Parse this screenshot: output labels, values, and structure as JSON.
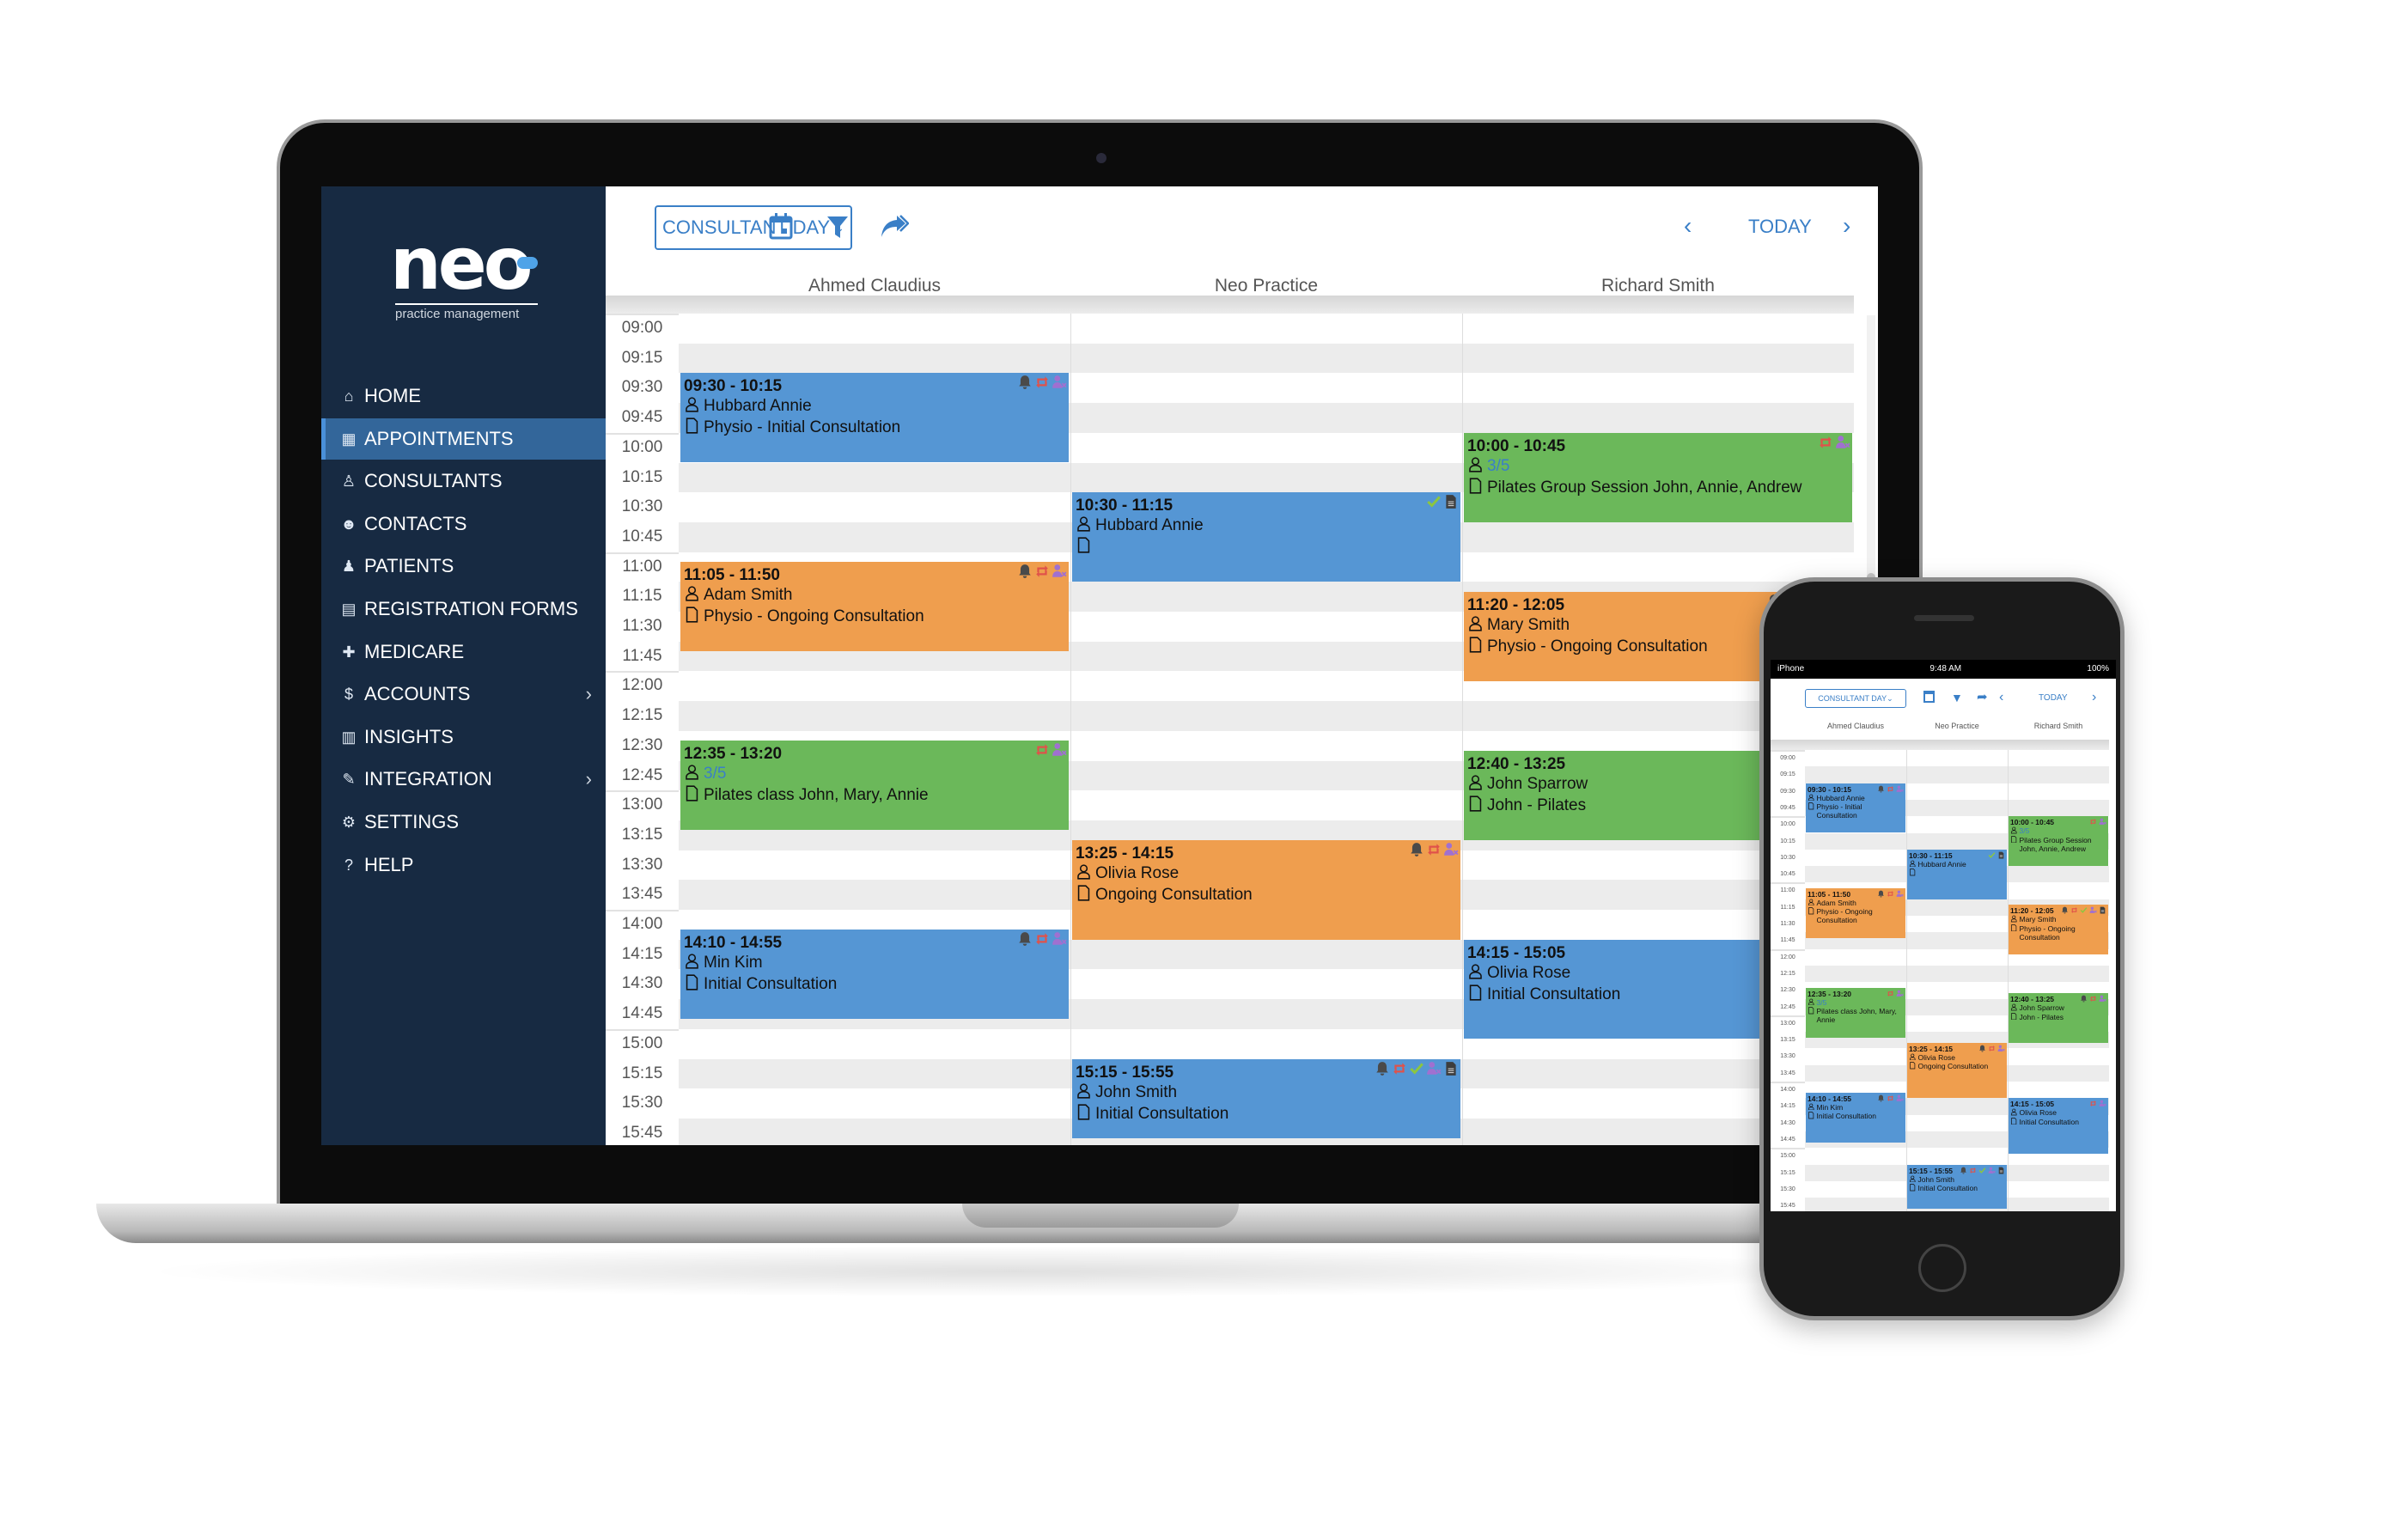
{
  "colors": {
    "blue": "#5596d4",
    "orange": "#ef9e4e",
    "green": "#6bb85a",
    "sidebar": "#172a42",
    "sidebar_active": "#33669a",
    "accent": "#3a7fc7"
  },
  "logo": {
    "text": "neo",
    "subtitle": "practice management"
  },
  "sidebar": {
    "items": [
      {
        "label": "HOME",
        "icon": "home-icon",
        "glyph": "⌂"
      },
      {
        "label": "APPOINTMENTS",
        "icon": "calendar-icon",
        "glyph": "▦",
        "active": true
      },
      {
        "label": "CONSULTANTS",
        "icon": "doctor-icon",
        "glyph": "♙"
      },
      {
        "label": "CONTACTS",
        "icon": "users-icon",
        "glyph": "☻"
      },
      {
        "label": "PATIENTS",
        "icon": "user-icon",
        "glyph": "♟"
      },
      {
        "label": "REGISTRATION FORMS",
        "icon": "file-icon",
        "glyph": "▤"
      },
      {
        "label": "MEDICARE",
        "icon": "medkit-icon",
        "glyph": "✚"
      },
      {
        "label": "ACCOUNTS",
        "icon": "dollar-icon",
        "glyph": "$",
        "submenu": true
      },
      {
        "label": "INSIGHTS",
        "icon": "bar-chart-icon",
        "glyph": "▥"
      },
      {
        "label": "INTEGRATION",
        "icon": "plug-icon",
        "glyph": "✎",
        "submenu": true
      },
      {
        "label": "SETTINGS",
        "icon": "cogs-icon",
        "glyph": "⚙"
      },
      {
        "label": "HELP",
        "icon": "question-icon",
        "glyph": "?"
      }
    ]
  },
  "toolbar": {
    "view_label": "CONSULTANT DAY",
    "today_label": "TODAY"
  },
  "calendar": {
    "times": [
      "09:00",
      "09:15",
      "09:30",
      "09:45",
      "10:00",
      "10:15",
      "10:30",
      "10:45",
      "11:00",
      "11:15",
      "11:30",
      "11:45",
      "12:00",
      "12:15",
      "12:30",
      "12:45",
      "13:00",
      "13:15",
      "13:30",
      "13:45",
      "14:00",
      "14:15",
      "14:30",
      "14:45",
      "15:00",
      "15:15",
      "15:30",
      "15:45"
    ],
    "columns": [
      {
        "name": "Ahmed Claudius",
        "events": [
          {
            "time": "09:30 - 10:15",
            "start": "09:30",
            "end": "10:15",
            "color": "blue",
            "person": "Hubbard Annie",
            "desc": "Physio - Initial Consultation",
            "icons": [
              "bell",
              "repeat",
              "user-x"
            ]
          },
          {
            "time": "11:05 - 11:50",
            "start": "11:05",
            "end": "11:50",
            "color": "orange",
            "person": "Adam Smith",
            "desc": "Physio - Ongoing Consultation",
            "icons": [
              "bell",
              "repeat",
              "user-x"
            ]
          },
          {
            "time": "12:35 - 13:20",
            "start": "12:35",
            "end": "13:20",
            "color": "green",
            "count": "3/5",
            "desc": "Pilates class John, Mary, Annie",
            "icons": [
              "repeat",
              "user-x"
            ]
          },
          {
            "time": "14:10 - 14:55",
            "start": "14:10",
            "end": "14:55",
            "color": "blue",
            "person": "Min Kim",
            "desc": "Initial Consultation",
            "icons": [
              "bell",
              "repeat",
              "user-x"
            ]
          }
        ]
      },
      {
        "name": "Neo Practice",
        "events": [
          {
            "time": "10:30 - 11:15",
            "start": "10:30",
            "end": "11:15",
            "color": "blue",
            "person": "Hubbard Annie",
            "desc": "",
            "icons": [
              "check",
              "doc"
            ]
          },
          {
            "time": "13:25 - 14:15",
            "start": "13:25",
            "end": "14:15",
            "color": "orange",
            "person": "Olivia Rose",
            "desc": "Ongoing Consultation",
            "icons": [
              "bell",
              "repeat",
              "user-x"
            ]
          },
          {
            "time": "15:15 - 15:55",
            "start": "15:15",
            "end": "15:55",
            "color": "blue",
            "person": "John Smith",
            "desc": "Initial Consultation",
            "icons": [
              "bell",
              "repeat",
              "check",
              "user-x",
              "doc"
            ]
          }
        ]
      },
      {
        "name": "Richard Smith",
        "events": [
          {
            "time": "10:00 - 10:45",
            "start": "10:00",
            "end": "10:45",
            "color": "green",
            "count": "3/5",
            "desc": "Pilates Group Session John, Annie, Andrew",
            "icons": [
              "repeat",
              "user-x"
            ]
          },
          {
            "time": "11:20 - 12:05",
            "start": "11:20",
            "end": "12:05",
            "color": "orange",
            "person": "Mary Smith",
            "desc": "Physio - Ongoing Consultation",
            "icons": [
              "bell",
              "repeat",
              "check",
              "user-x",
              "doc"
            ]
          },
          {
            "time": "12:40 - 13:25",
            "start": "12:40",
            "end": "13:25",
            "color": "green",
            "person": "John Sparrow",
            "desc": "John - Pilates",
            "icons": [
              "bell",
              "repeat",
              "user-x"
            ]
          },
          {
            "time": "14:15 - 15:05",
            "start": "14:15",
            "end": "15:05",
            "color": "blue",
            "person": "Olivia Rose",
            "desc": "Initial Consultation",
            "icons": [
              "repeat",
              "user-x"
            ]
          }
        ]
      }
    ]
  },
  "phone": {
    "carrier": "iPhone",
    "clock": "9:48 AM",
    "battery": "100%"
  }
}
